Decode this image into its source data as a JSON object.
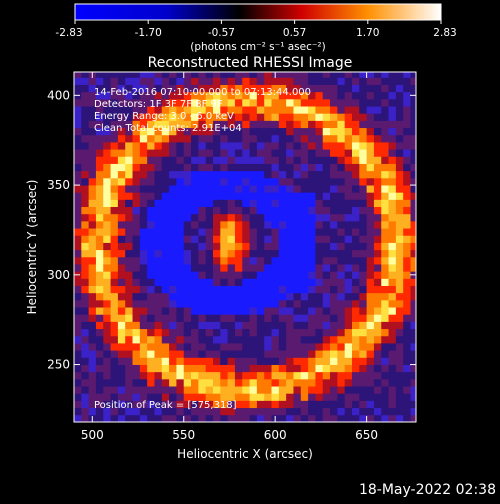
{
  "chart_data": {
    "type": "heatmap",
    "title": "Reconstructed RHESSI Image",
    "xlabel": "Heliocentric X (arcsec)",
    "ylabel": "Heliocentric Y (arcsec)",
    "xlim": [
      490,
      677
    ],
    "ylim": [
      218,
      413
    ],
    "xticks": [
      500,
      550,
      600,
      650
    ],
    "yticks": [
      250,
      300,
      350,
      400
    ],
    "colorbar": {
      "range": [
        -2.83,
        2.83
      ],
      "ticks": [
        "-2.83",
        "-1.70",
        "-0.57",
        "0.57",
        "1.70",
        "2.83"
      ],
      "unit_label": "(photons cm⁻² s⁻¹ asec⁻²)",
      "colors": [
        "#0000ff",
        "#000000",
        "#ff0000",
        "#ffa000",
        "#ffffff"
      ]
    },
    "annotations": [
      "14-Feb-2016 07:10:00.000 to 07:13:44.000",
      "Detectors: 1F 3F 7F 8F 9F",
      "Energy Range: 3.0 - 6.0 keV",
      "Clean     Total counts: 2.91E+04",
      "Position of Peak = [575,318]"
    ],
    "peak": [
      575,
      318
    ],
    "features": [
      {
        "name": "central source",
        "x": 575,
        "y": 318,
        "value": 2.8
      },
      {
        "name": "ring",
        "center": [
          585,
          317
        ],
        "radius_x": 82,
        "radius_y": 80,
        "value": 1.5
      }
    ]
  },
  "footer": {
    "timestamp": "18-May-2022 02:38"
  }
}
